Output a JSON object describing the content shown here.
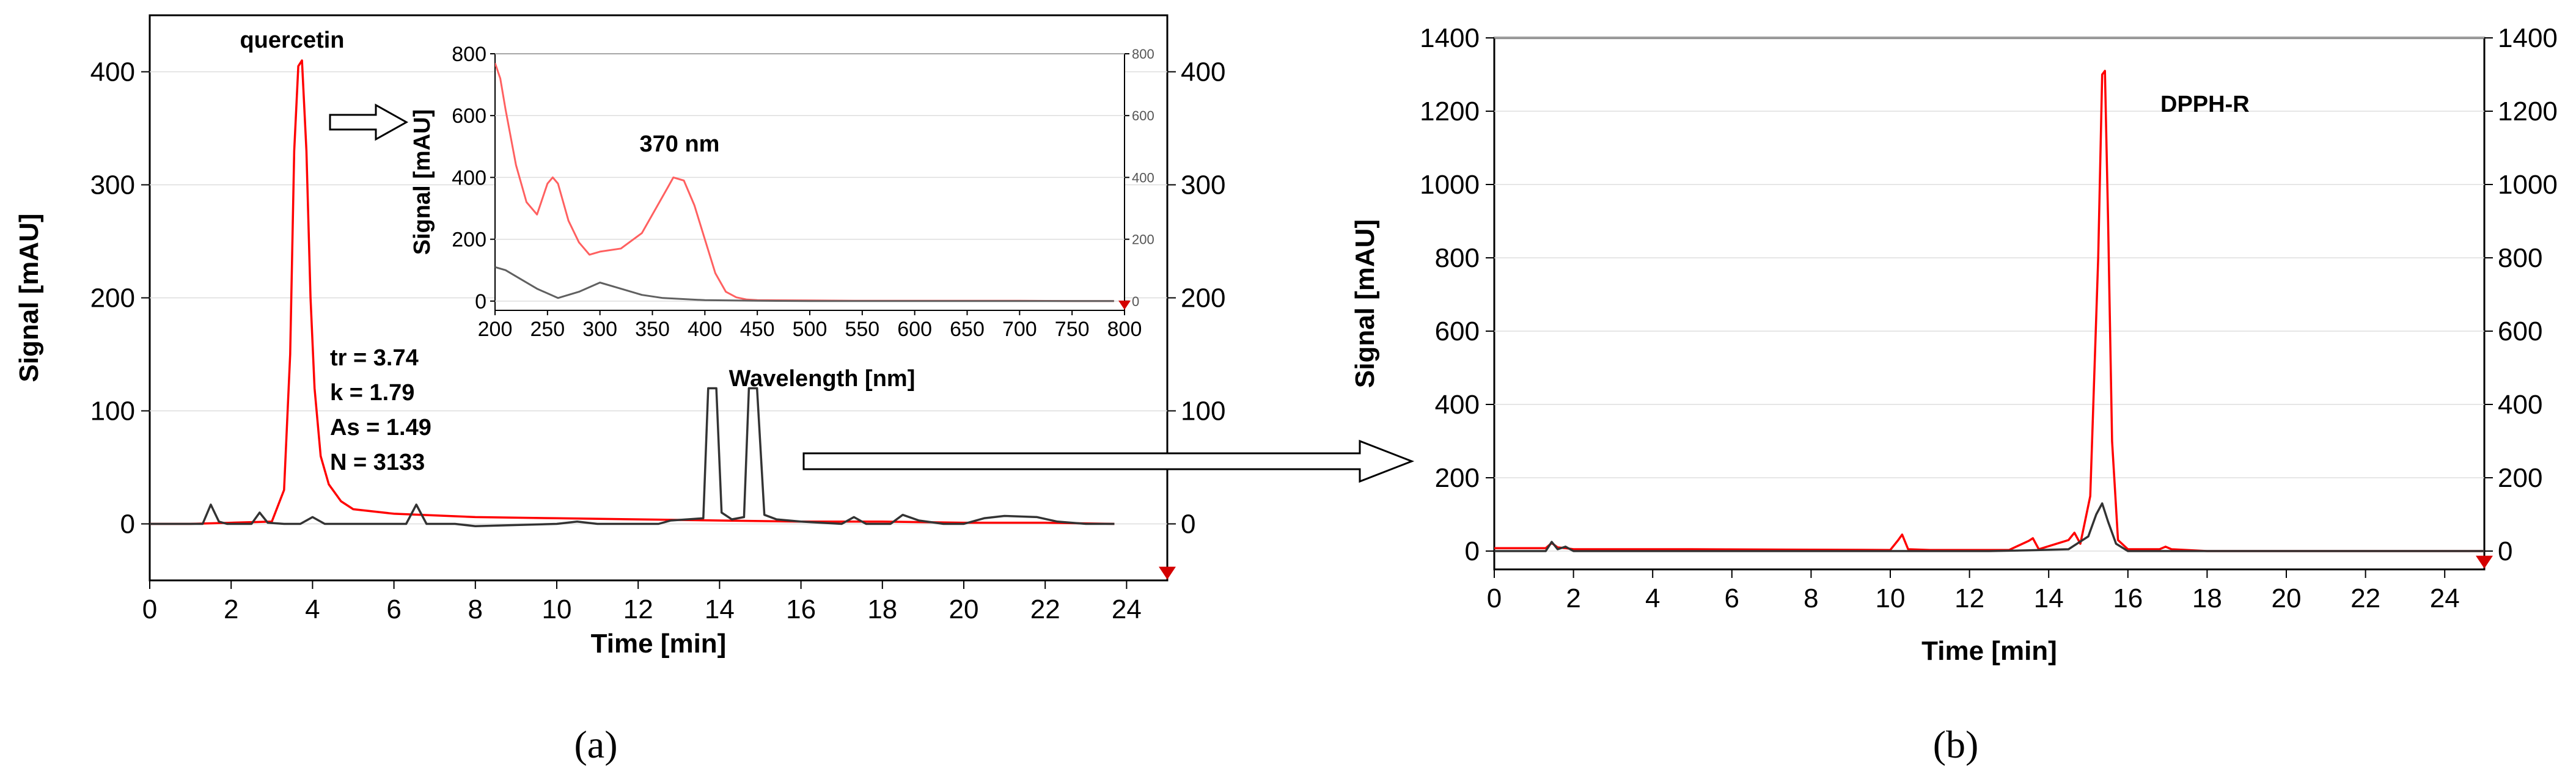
{
  "chart_data": [
    {
      "panel_label": "(a)",
      "type": "line",
      "xlabel": "Time [min]",
      "ylabel": "Signal [mAU]",
      "xlim": [
        0,
        25
      ],
      "ylim": [
        -50,
        450
      ],
      "x_ticks": [
        0,
        2,
        4,
        6,
        8,
        10,
        12,
        14,
        16,
        18,
        20,
        22,
        24
      ],
      "y_ticks": [
        0,
        100,
        200,
        300,
        400
      ],
      "y_ticks_right": [
        0,
        100,
        200,
        300,
        400
      ],
      "series": [
        {
          "color": "#ff0000",
          "x": [
            0,
            1,
            2,
            3,
            3.3,
            3.45,
            3.55,
            3.65,
            3.74,
            3.85,
            3.95,
            4.05,
            4.2,
            4.4,
            4.7,
            5.0,
            6,
            8,
            10,
            12,
            14,
            16,
            18,
            20,
            22,
            23.7
          ],
          "y": [
            0,
            0,
            1,
            2,
            30,
            150,
            330,
            405,
            410,
            330,
            200,
            120,
            60,
            35,
            20,
            13,
            9,
            6,
            5,
            4,
            3,
            2,
            2,
            1,
            1,
            0
          ]
        },
        {
          "color": "#333333",
          "x": [
            0,
            1.3,
            1.5,
            1.7,
            1.9,
            2.5,
            2.7,
            2.9,
            3.3,
            3.7,
            4.0,
            4.3,
            5,
            6.3,
            6.55,
            6.8,
            7.5,
            8,
            10,
            10.5,
            11,
            12.5,
            12.8,
            13.6,
            13.72,
            13.82,
            13.92,
            14.05,
            14.3,
            14.6,
            14.72,
            14.82,
            14.92,
            15.1,
            15.4,
            16,
            17,
            17.3,
            17.6,
            18.2,
            18.5,
            18.9,
            19.5,
            20,
            20.5,
            21,
            21.8,
            22.3,
            23,
            23.7
          ],
          "y": [
            0,
            0,
            17,
            2,
            0,
            0,
            10,
            1,
            0,
            0,
            6,
            0,
            0,
            0,
            17,
            0,
            0,
            -2,
            0,
            2,
            0,
            0,
            3,
            5,
            120,
            120,
            120,
            10,
            4,
            6,
            120,
            120,
            120,
            8,
            4,
            2,
            0,
            6,
            0,
            0,
            8,
            3,
            0,
            0,
            5,
            7,
            6,
            2,
            0,
            0
          ]
        }
      ],
      "annotations": [
        {
          "text": "quercetin"
        },
        {
          "text": "tr = 3.74"
        },
        {
          "text": "k = 1.79"
        },
        {
          "text": "As = 1.49"
        },
        {
          "text": "N = 3133"
        }
      ],
      "inset": {
        "type": "line",
        "xlabel": "Wavelength [nm]",
        "ylabel": "Signal [mAU]",
        "xlim": [
          200,
          800
        ],
        "ylim": [
          -30,
          800
        ],
        "x_ticks": [
          200,
          250,
          300,
          350,
          400,
          450,
          500,
          550,
          600,
          650,
          700,
          750,
          800
        ],
        "y_ticks": [
          0,
          200,
          400,
          600,
          800
        ],
        "y_ticks_right": [
          0,
          200,
          400,
          600,
          800
        ],
        "annotation": "370 nm",
        "series": [
          {
            "color": "#ff6060",
            "x": [
              200,
              205,
              210,
              220,
              230,
              240,
              250,
              255,
              260,
              270,
              280,
              290,
              300,
              320,
              340,
              355,
              365,
              370,
              380,
              390,
              400,
              410,
              420,
              430,
              440,
              450,
              500,
              550,
              600,
              650,
              700,
              750,
              790
            ],
            "y": [
              770,
              720,
              620,
              440,
              320,
              280,
              380,
              400,
              380,
              260,
              190,
              150,
              160,
              170,
              220,
              310,
              370,
              400,
              390,
              310,
              200,
              90,
              30,
              12,
              5,
              3,
              2,
              1,
              1,
              1,
              1,
              0,
              0
            ]
          },
          {
            "color": "#606060",
            "x": [
              200,
              210,
              220,
              240,
              260,
              280,
              300,
              320,
              340,
              360,
              400,
              450,
              500,
              600,
              700,
              790
            ],
            "y": [
              110,
              100,
              80,
              40,
              10,
              30,
              60,
              40,
              20,
              10,
              3,
              1,
              0,
              0,
              0,
              0
            ]
          }
        ]
      }
    },
    {
      "panel_label": "(b)",
      "type": "line",
      "xlabel": "Time [min]",
      "ylabel": "Signal [mAU]",
      "xlim": [
        0,
        25
      ],
      "ylim": [
        -50,
        1400
      ],
      "x_ticks": [
        0,
        2,
        4,
        6,
        8,
        10,
        12,
        14,
        16,
        18,
        20,
        22,
        24
      ],
      "y_ticks": [
        0,
        200,
        400,
        600,
        800,
        1000,
        1200,
        1400
      ],
      "y_ticks_right": [
        0,
        200,
        400,
        600,
        800,
        1000,
        1200,
        1400
      ],
      "series": [
        {
          "color": "#ff0000",
          "x": [
            0,
            1.3,
            1.45,
            1.6,
            1.8,
            2,
            5,
            10,
            10.2,
            10.3,
            10.45,
            11,
            13,
            13.5,
            13.6,
            13.75,
            14.5,
            14.65,
            14.8,
            15.05,
            15.25,
            15.35,
            15.42,
            15.5,
            15.6,
            15.75,
            16,
            16.8,
            16.95,
            17.1,
            18,
            25
          ],
          "y": [
            8,
            8,
            22,
            10,
            8,
            5,
            5,
            3,
            30,
            45,
            5,
            3,
            3,
            28,
            35,
            5,
            30,
            50,
            20,
            150,
            800,
            1300,
            1310,
            900,
            300,
            30,
            5,
            5,
            12,
            5,
            0,
            0
          ]
        },
        {
          "color": "#333333",
          "x": [
            0,
            1.3,
            1.45,
            1.6,
            1.8,
            2,
            5,
            10,
            12.5,
            13.5,
            14.5,
            15.0,
            15.2,
            15.35,
            15.5,
            15.7,
            16,
            18,
            25
          ],
          "y": [
            0,
            0,
            25,
            5,
            12,
            0,
            0,
            0,
            0,
            2,
            5,
            40,
            100,
            130,
            80,
            20,
            0,
            0,
            0
          ]
        }
      ],
      "annotations": [
        {
          "text": "DPPH-R"
        }
      ]
    }
  ]
}
